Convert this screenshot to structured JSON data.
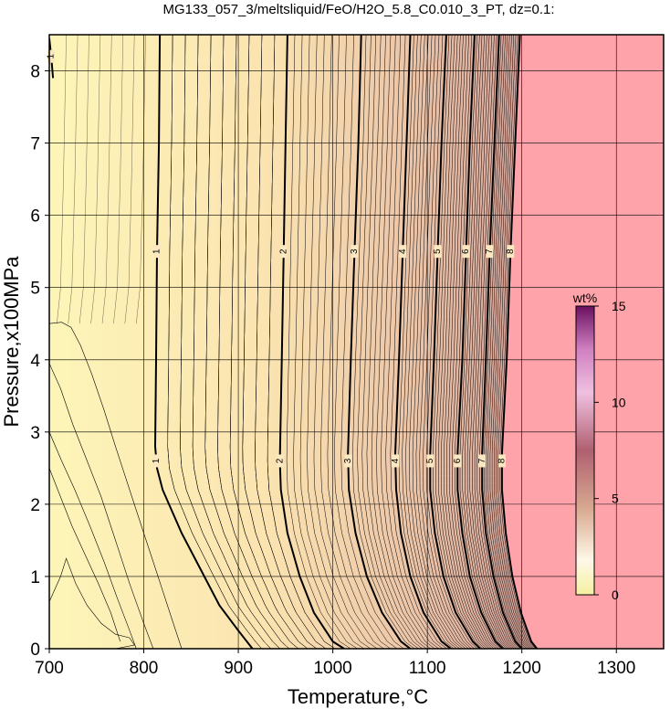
{
  "chart_data": {
    "type": "contour",
    "title": "MG133_057_3/meltsliquid/FeO/H2O_5.8_C0.010_3_PT, dz=0.1:",
    "xlabel": "Temperature,°C",
    "ylabel": "Pressure,x100MPa",
    "xlim": [
      700,
      1350
    ],
    "ylim": [
      0,
      8.5
    ],
    "xticks": [
      "700",
      "800",
      "900",
      "1000",
      "1100",
      "1200",
      "1300"
    ],
    "yticks": [
      "0",
      "1",
      "2",
      "3",
      "4",
      "5",
      "6",
      "7",
      "8"
    ],
    "grid": true,
    "contour_interval": 0.1,
    "labeled_contours": [
      {
        "level": "1",
        "points": [
          [
            700,
            8.45
          ],
          [
            702,
            8.2
          ],
          [
            704,
            7.9
          ]
        ]
      },
      {
        "level": "1",
        "points": [
          [
            817,
            8.5
          ],
          [
            816,
            7.0
          ],
          [
            814,
            5.5
          ],
          [
            813,
            4.0
          ],
          [
            812,
            2.8
          ],
          [
            814,
            2.5
          ],
          [
            820,
            2.2
          ],
          [
            840,
            1.6
          ],
          [
            860,
            1.1
          ],
          [
            880,
            0.6
          ],
          [
            900,
            0.25
          ],
          [
            915,
            0.0
          ]
        ]
      },
      {
        "level": "2",
        "points": [
          [
            952,
            8.5
          ],
          [
            950,
            7.0
          ],
          [
            948,
            5.5
          ],
          [
            946,
            4.0
          ],
          [
            944,
            2.6
          ],
          [
            945,
            2.2
          ],
          [
            952,
            1.6
          ],
          [
            965,
            1.0
          ],
          [
            980,
            0.5
          ],
          [
            1000,
            0.1
          ],
          [
            1012,
            0.0
          ]
        ]
      },
      {
        "level": "3",
        "points": [
          [
            1030,
            8.5
          ],
          [
            1027,
            7.0
          ],
          [
            1023,
            5.5
          ],
          [
            1019,
            4.0
          ],
          [
            1016,
            2.7
          ],
          [
            1017,
            2.2
          ],
          [
            1024,
            1.6
          ],
          [
            1036,
            1.0
          ],
          [
            1052,
            0.5
          ],
          [
            1072,
            0.1
          ],
          [
            1082,
            0.0
          ]
        ]
      },
      {
        "level": "4",
        "points": [
          [
            1082,
            8.5
          ],
          [
            1078,
            7.0
          ],
          [
            1074,
            5.5
          ],
          [
            1070,
            4.0
          ],
          [
            1066,
            2.7
          ],
          [
            1067,
            2.2
          ],
          [
            1072,
            1.6
          ],
          [
            1082,
            1.0
          ],
          [
            1096,
            0.5
          ],
          [
            1115,
            0.1
          ],
          [
            1125,
            0.0
          ]
        ]
      },
      {
        "level": "5",
        "points": [
          [
            1120,
            8.5
          ],
          [
            1115,
            7.0
          ],
          [
            1111,
            5.5
          ],
          [
            1107,
            4.0
          ],
          [
            1103,
            2.7
          ],
          [
            1103,
            2.2
          ],
          [
            1108,
            1.6
          ],
          [
            1117,
            1.0
          ],
          [
            1130,
            0.5
          ],
          [
            1148,
            0.1
          ],
          [
            1156,
            0.0
          ]
        ]
      },
      {
        "level": "6",
        "points": [
          [
            1150,
            8.5
          ],
          [
            1145,
            7.0
          ],
          [
            1141,
            5.5
          ],
          [
            1137,
            4.0
          ],
          [
            1132,
            2.7
          ],
          [
            1132,
            2.2
          ],
          [
            1137,
            1.6
          ],
          [
            1145,
            1.0
          ],
          [
            1157,
            0.5
          ],
          [
            1172,
            0.1
          ],
          [
            1180,
            0.0
          ]
        ]
      },
      {
        "level": "7",
        "points": [
          [
            1176,
            8.5
          ],
          [
            1171,
            7.0
          ],
          [
            1166,
            5.5
          ],
          [
            1162,
            4.0
          ],
          [
            1158,
            2.7
          ],
          [
            1158,
            2.2
          ],
          [
            1162,
            1.6
          ],
          [
            1170,
            1.0
          ],
          [
            1180,
            0.5
          ],
          [
            1193,
            0.1
          ],
          [
            1200,
            0.0
          ]
        ]
      },
      {
        "level": "8",
        "points": [
          [
            1198,
            8.5
          ],
          [
            1193,
            7.0
          ],
          [
            1188,
            5.5
          ],
          [
            1184,
            4.0
          ],
          [
            1179,
            2.7
          ],
          [
            1179,
            2.2
          ],
          [
            1183,
            1.6
          ],
          [
            1190,
            1.0
          ],
          [
            1199,
            0.5
          ],
          [
            1210,
            0.1
          ],
          [
            1216,
            0.0
          ]
        ]
      }
    ],
    "minor_contours_left": [
      {
        "points": [
          [
            700,
            4.5
          ],
          [
            713,
            4.52
          ],
          [
            723,
            4.45
          ],
          [
            733,
            4.2
          ],
          [
            745,
            3.8
          ],
          [
            758,
            3.3
          ],
          [
            770,
            2.8
          ],
          [
            785,
            2.2
          ],
          [
            800,
            1.6
          ],
          [
            815,
            1.0
          ],
          [
            830,
            0.4
          ],
          [
            840,
            0.0
          ]
        ]
      },
      {
        "points": [
          [
            700,
            3.95
          ],
          [
            712,
            3.6
          ],
          [
            725,
            3.1
          ],
          [
            740,
            2.6
          ],
          [
            755,
            2.1
          ],
          [
            770,
            1.5
          ],
          [
            785,
            0.9
          ],
          [
            800,
            0.35
          ],
          [
            810,
            0.0
          ]
        ]
      },
      {
        "points": [
          [
            700,
            3.0
          ],
          [
            713,
            2.6
          ],
          [
            727,
            2.2
          ],
          [
            743,
            1.7
          ],
          [
            758,
            1.2
          ],
          [
            772,
            0.7
          ],
          [
            785,
            0.25
          ],
          [
            792,
            0.0
          ]
        ]
      },
      {
        "points": [
          [
            700,
            2.5
          ],
          [
            712,
            2.1
          ],
          [
            724,
            1.7
          ],
          [
            738,
            1.3
          ],
          [
            752,
            0.9
          ],
          [
            765,
            0.5
          ],
          [
            775,
            0.1
          ]
        ]
      },
      {
        "points": [
          [
            700,
            0.65
          ],
          [
            712,
            1.0
          ],
          [
            718,
            1.25
          ],
          [
            728,
            0.9
          ],
          [
            740,
            0.6
          ],
          [
            755,
            0.35
          ],
          [
            770,
            0.2
          ],
          [
            785,
            0.15
          ],
          [
            790,
            0.05
          ],
          [
            770,
            0.0
          ]
        ]
      }
    ],
    "region_colors": {
      "melt_fraction_low": "#fdf3b4",
      "melt_fraction_high": "#d9a394",
      "outside_field": "#ffa3ab"
    },
    "field_boundary": {
      "points": [
        [
          1198,
          8.5
        ],
        [
          1193,
          7.0
        ],
        [
          1188,
          5.5
        ],
        [
          1184,
          4.0
        ],
        [
          1179,
          2.7
        ],
        [
          1179,
          2.2
        ],
        [
          1183,
          1.6
        ],
        [
          1190,
          1.0
        ],
        [
          1199,
          0.5
        ],
        [
          1210,
          0.1
        ],
        [
          1218,
          0.0
        ]
      ]
    },
    "colorbar": {
      "label": "wt%",
      "ticks": [
        "0",
        "5",
        "10",
        "15"
      ],
      "range": [
        0,
        15
      ]
    }
  }
}
